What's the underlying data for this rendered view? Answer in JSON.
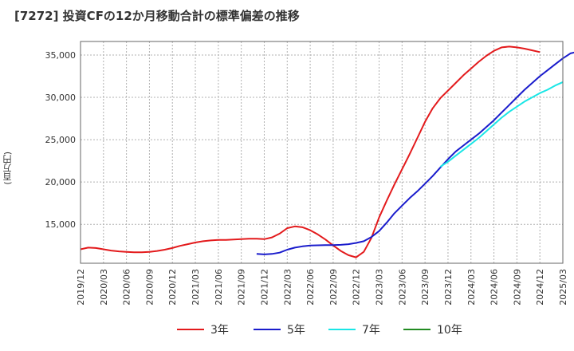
{
  "chart_data": {
    "type": "line",
    "title": "[7272]  投資CFの12か月移動合計の標準偏差の推移",
    "ylabel": "(百万円)",
    "xlabel": "",
    "x_ticks": [
      "2019/12",
      "2020/03",
      "2020/06",
      "2020/09",
      "2020/12",
      "2021/03",
      "2021/06",
      "2021/09",
      "2021/12",
      "2022/03",
      "2022/06",
      "2022/09",
      "2022/12",
      "2023/03",
      "2023/06",
      "2023/09",
      "2023/12",
      "2024/03",
      "2024/06",
      "2024/09",
      "2024/12",
      "2025/03"
    ],
    "y_ticks": [
      15000,
      20000,
      25000,
      30000,
      35000
    ],
    "y_tick_labels": [
      "15,000",
      "20,000",
      "25,000",
      "30,000",
      "35,000"
    ],
    "ylim": [
      10400,
      36600
    ],
    "grid": true,
    "legend_position": "bottom",
    "colors": {
      "3年": "#e31a1c",
      "5年": "#1a1ccc",
      "7年": "#1ae6e6",
      "10年": "#228b22"
    },
    "series": [
      {
        "name": "3年",
        "start": "2019/12",
        "values": [
          12050,
          12250,
          12200,
          12050,
          11900,
          11800,
          11750,
          11700,
          11700,
          11750,
          11850,
          12000,
          12200,
          12450,
          12650,
          12850,
          13000,
          13100,
          13150,
          13150,
          13200,
          13250,
          13300,
          13300,
          13250,
          13450,
          13900,
          14550,
          14750,
          14650,
          14300,
          13800,
          13200,
          12500,
          11850,
          11350,
          11100,
          11750,
          13400,
          15800,
          17800,
          19700,
          21500,
          23300,
          25200,
          27100,
          28700,
          29900,
          30800,
          31700,
          32600,
          33400,
          34200,
          34900,
          35500,
          35900,
          36000,
          35900,
          35750,
          35550,
          35350
        ]
      },
      {
        "name": "5年",
        "start": "2021/11",
        "values": [
          11500,
          11450,
          11500,
          11650,
          12000,
          12250,
          12400,
          12500,
          12520,
          12550,
          12550,
          12580,
          12650,
          12800,
          13000,
          13500,
          14200,
          15200,
          16300,
          17200,
          18100,
          18900,
          19800,
          20700,
          21700,
          22700,
          23600,
          24300,
          25000,
          25700,
          26500,
          27300,
          28200,
          29100,
          30000,
          30900,
          31700,
          32500,
          33200,
          33900,
          34600,
          35200,
          35400
        ]
      },
      {
        "name": "7年",
        "start": "2023/11",
        "values": [
          21800,
          22400,
          23100,
          23800,
          24500,
          25200,
          26000,
          26800,
          27600,
          28300,
          28900,
          29500,
          30000,
          30500,
          30900,
          31400,
          31800
        ]
      },
      {
        "name": "10年",
        "start": "",
        "values": []
      }
    ]
  }
}
